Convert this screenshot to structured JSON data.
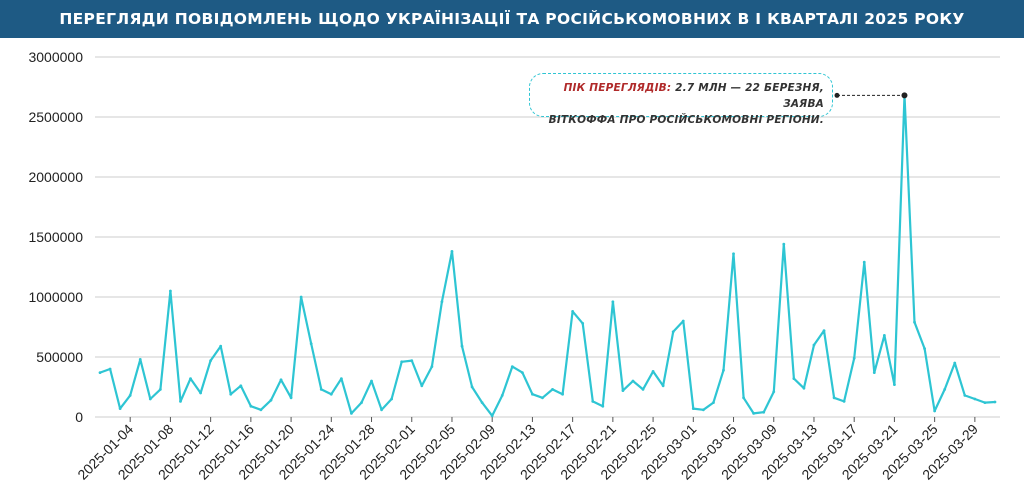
{
  "header": {
    "title": "ПЕРЕГЛЯДИ ПОВІДОМЛЕНЬ ЩОДО УКРАЇНІЗАЦІЇ ТА РОСІЙСЬКОМОВНИХ В І КВАРТАЛІ 2025 РОКУ"
  },
  "annotation": {
    "highlight": "ПІК ПЕРЕГЛЯДІВ:",
    "line1": " 2.7 МЛН — 22 БЕРЕЗНЯ, ЗАЯВА",
    "line2": "ВІТКОФФА ПРО РОСІЙСЬКОМОВНІ РЕГІОНИ.",
    "peak_x": "2025-03-22",
    "peak_y": 2680000
  },
  "colors": {
    "header_bg": "#1e5a84",
    "line": "#2ec5d3",
    "highlight": "#b02a2a",
    "grid": "#cccccc"
  },
  "chart_data": {
    "type": "line",
    "title": "ПЕРЕГЛЯДИ ПОВІДОМЛЕНЬ ЩОДО УКРАЇНІЗАЦІЇ ТА РОСІЙСЬКОМОВНИХ В І КВАРТАЛІ 2025 РОКУ",
    "xlabel": "",
    "ylabel": "",
    "ylim": [
      0,
      3000000
    ],
    "yticks": [
      "0",
      "500000",
      "1000000",
      "1500000",
      "2000000",
      "2500000",
      "3000000"
    ],
    "x_start": "2025-01-01",
    "xticks": [
      "2025-01-04",
      "2025-01-08",
      "2025-01-12",
      "2025-01-16",
      "2025-01-20",
      "2025-01-24",
      "2025-01-28",
      "2025-02-01",
      "2025-02-05",
      "2025-02-09",
      "2025-02-13",
      "2025-02-17",
      "2025-02-21",
      "2025-02-25",
      "2025-03-01",
      "2025-03-05",
      "2025-03-09",
      "2025-03-13",
      "2025-03-17",
      "2025-03-21",
      "2025-03-25",
      "2025-03-29"
    ],
    "grid": true,
    "series": [
      {
        "values": [
          370000,
          400000,
          70000,
          180000,
          480000,
          150000,
          230000,
          1050000,
          130000,
          320000,
          200000,
          470000,
          590000,
          190000,
          260000,
          90000,
          60000,
          140000,
          310000,
          160000,
          1000000,
          610000,
          230000,
          190000,
          320000,
          30000,
          120000,
          300000,
          60000,
          150000,
          460000,
          470000,
          260000,
          420000,
          960000,
          1380000,
          590000,
          250000,
          120000,
          10000,
          180000,
          420000,
          370000,
          190000,
          160000,
          230000,
          190000,
          880000,
          780000,
          130000,
          90000,
          960000,
          220000,
          300000,
          230000,
          380000,
          260000,
          710000,
          800000,
          70000,
          60000,
          120000,
          390000,
          1360000,
          160000,
          30000,
          40000,
          210000,
          1440000,
          320000,
          240000,
          600000,
          720000,
          160000,
          130000,
          490000,
          1290000,
          370000,
          680000,
          270000,
          2680000,
          790000,
          570000,
          50000,
          230000,
          450000,
          180000,
          150000,
          120000,
          125000
        ]
      }
    ]
  }
}
